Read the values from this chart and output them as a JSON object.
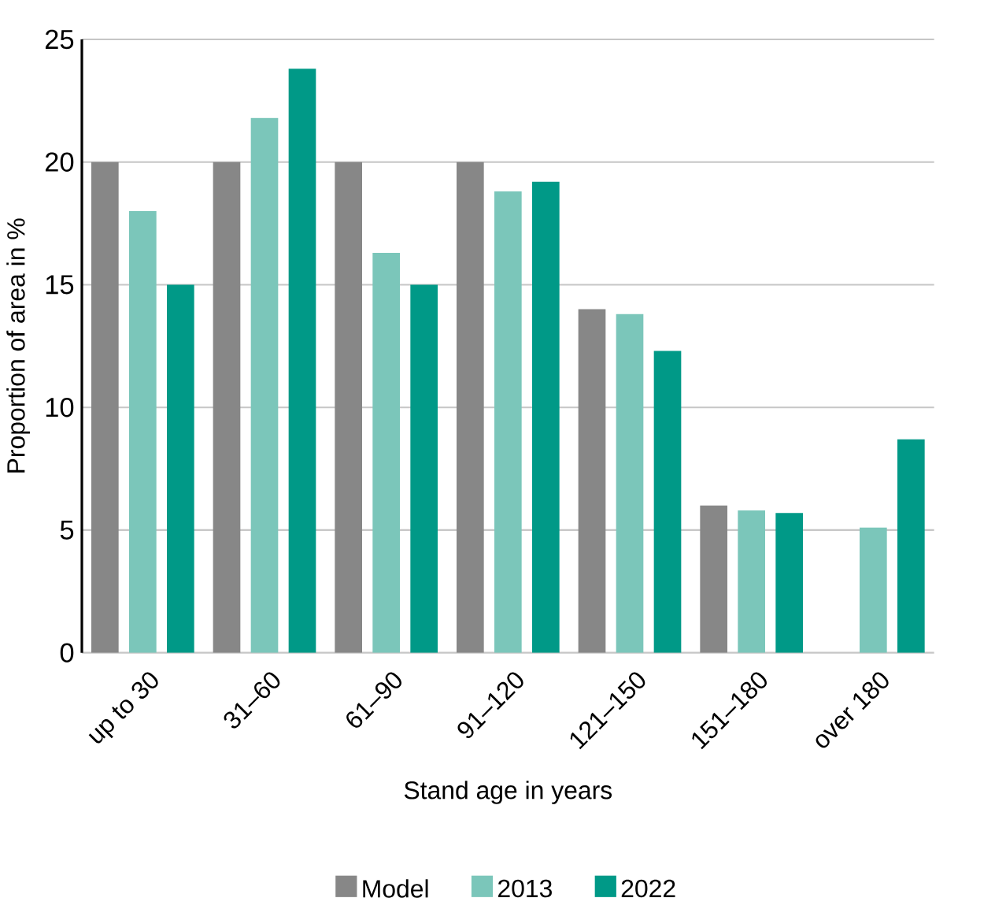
{
  "chart_data": {
    "type": "bar",
    "xlabel": "Stand age in years",
    "ylabel": "Proportion of area in %",
    "categories": [
      "up to 30",
      "31–60",
      "61–90",
      "91–120",
      "121–150",
      "151–180",
      "over 180"
    ],
    "series": [
      {
        "name": "Model",
        "color": "#878787",
        "values": [
          20,
          20,
          20,
          20,
          14.0,
          6.0,
          null
        ]
      },
      {
        "name": "2013",
        "color": "#7bc6ba",
        "values": [
          18,
          21.8,
          16.3,
          18.8,
          13.8,
          5.8,
          5.1
        ]
      },
      {
        "name": "2022",
        "color": "#009987",
        "values": [
          15,
          23.8,
          15,
          19.2,
          12.3,
          5.7,
          8.7
        ]
      }
    ],
    "ylim": [
      0,
      25
    ],
    "yticks": [
      0,
      5,
      10,
      15,
      20,
      25
    ],
    "grid": "y",
    "legend": "bottom"
  }
}
